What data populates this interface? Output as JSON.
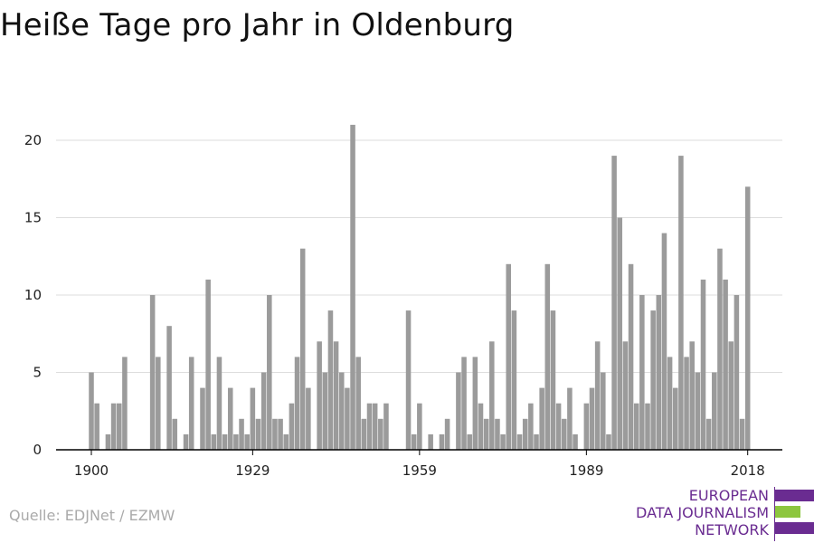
{
  "title": "Heiße Tage pro Jahr in Oldenburg",
  "source": "Quelle: EDJNet / EZMW",
  "logo": {
    "lines": [
      "EUROPEAN",
      "DATA JOURNALISM",
      "NETWORK"
    ],
    "colors": {
      "text": "#6a2c91",
      "bar_top": "#6a2c91",
      "bar_mid": "#8dc63f",
      "bar_bottom": "#6a2c91"
    }
  },
  "colors": {
    "bar": "#9b9b9b",
    "grid": "#dddddd",
    "axis": "#000000"
  },
  "chart_data": {
    "type": "bar",
    "title": "Heiße Tage pro Jahr in Oldenburg",
    "xlabel": "",
    "ylabel": "",
    "ylim": [
      0,
      22
    ],
    "yticks": [
      0,
      5,
      10,
      15,
      20
    ],
    "xticks": [
      1900,
      1929,
      1959,
      1989,
      2018
    ],
    "xlim": [
      1897,
      2023
    ],
    "grid": true,
    "x": [
      1900,
      1901,
      1902,
      1903,
      1904,
      1905,
      1906,
      1907,
      1908,
      1909,
      1910,
      1911,
      1912,
      1913,
      1914,
      1915,
      1916,
      1917,
      1918,
      1919,
      1920,
      1921,
      1922,
      1923,
      1924,
      1925,
      1926,
      1927,
      1928,
      1929,
      1930,
      1931,
      1932,
      1933,
      1934,
      1935,
      1936,
      1937,
      1938,
      1939,
      1940,
      1941,
      1942,
      1943,
      1944,
      1945,
      1946,
      1947,
      1948,
      1949,
      1950,
      1951,
      1952,
      1953,
      1954,
      1955,
      1956,
      1957,
      1958,
      1959,
      1960,
      1961,
      1962,
      1963,
      1964,
      1965,
      1966,
      1967,
      1968,
      1969,
      1970,
      1971,
      1972,
      1973,
      1974,
      1975,
      1976,
      1977,
      1978,
      1979,
      1980,
      1981,
      1982,
      1983,
      1984,
      1985,
      1986,
      1987,
      1988,
      1989,
      1990,
      1991,
      1992,
      1993,
      1994,
      1995,
      1996,
      1997,
      1998,
      1999,
      2000,
      2001,
      2002,
      2003,
      2004,
      2005,
      2006,
      2007,
      2008,
      2009,
      2010,
      2011,
      2012,
      2013,
      2014,
      2015,
      2016,
      2017,
      2018
    ],
    "values": [
      5,
      3,
      0,
      1,
      3,
      3,
      6,
      0,
      0,
      0,
      0,
      10,
      6,
      0,
      8,
      2,
      0,
      1,
      6,
      0,
      4,
      11,
      1,
      6,
      1,
      4,
      1,
      2,
      1,
      4,
      2,
      5,
      10,
      2,
      2,
      1,
      3,
      6,
      13,
      4,
      0,
      7,
      5,
      9,
      7,
      5,
      4,
      21,
      6,
      2,
      3,
      3,
      2,
      3,
      0,
      0,
      0,
      9,
      1,
      3,
      0,
      1,
      0,
      1,
      2,
      0,
      5,
      6,
      1,
      6,
      3,
      2,
      7,
      2,
      1,
      12,
      9,
      1,
      2,
      3,
      1,
      4,
      12,
      9,
      3,
      2,
      4,
      1,
      0,
      3,
      4,
      7,
      5,
      1,
      19,
      15,
      7,
      12,
      3,
      10,
      3,
      9,
      10,
      14,
      6,
      4,
      19,
      6,
      7,
      5,
      11,
      2,
      5,
      13,
      11,
      7,
      10,
      2,
      17
    ]
  }
}
